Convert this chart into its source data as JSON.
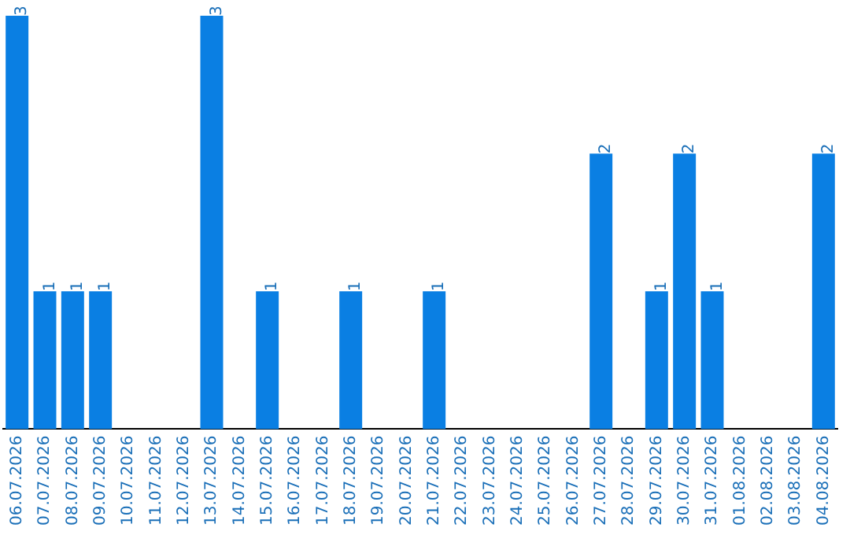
{
  "chart_data": {
    "type": "bar",
    "categories": [
      "06.07.2026",
      "07.07.2026",
      "08.07.2026",
      "09.07.2026",
      "10.07.2026",
      "11.07.2026",
      "12.07.2026",
      "13.07.2026",
      "14.07.2026",
      "15.07.2026",
      "16.07.2026",
      "17.07.2026",
      "18.07.2026",
      "19.07.2026",
      "20.07.2026",
      "21.07.2026",
      "22.07.2026",
      "23.07.2026",
      "24.07.2026",
      "25.07.2026",
      "26.07.2026",
      "27.07.2026",
      "28.07.2026",
      "29.07.2026",
      "30.07.2026",
      "31.07.2026",
      "01.08.2026",
      "02.08.2026",
      "03.08.2026",
      "04.08.2026"
    ],
    "values": [
      3,
      1,
      1,
      1,
      0,
      0,
      0,
      3,
      0,
      1,
      0,
      0,
      1,
      0,
      0,
      1,
      0,
      0,
      0,
      0,
      0,
      2,
      0,
      1,
      2,
      1,
      0,
      0,
      0,
      2
    ],
    "value_labels": [
      "3",
      "1",
      "1",
      "1",
      null,
      null,
      null,
      "3",
      null,
      "1",
      null,
      null,
      "1",
      null,
      null,
      "1",
      null,
      null,
      null,
      null,
      null,
      "2",
      null,
      "1",
      "2",
      "1",
      null,
      null,
      null,
      "2"
    ],
    "color": "#0a7fe3",
    "grid": false,
    "legend": false,
    "tick_labels": "x"
  }
}
